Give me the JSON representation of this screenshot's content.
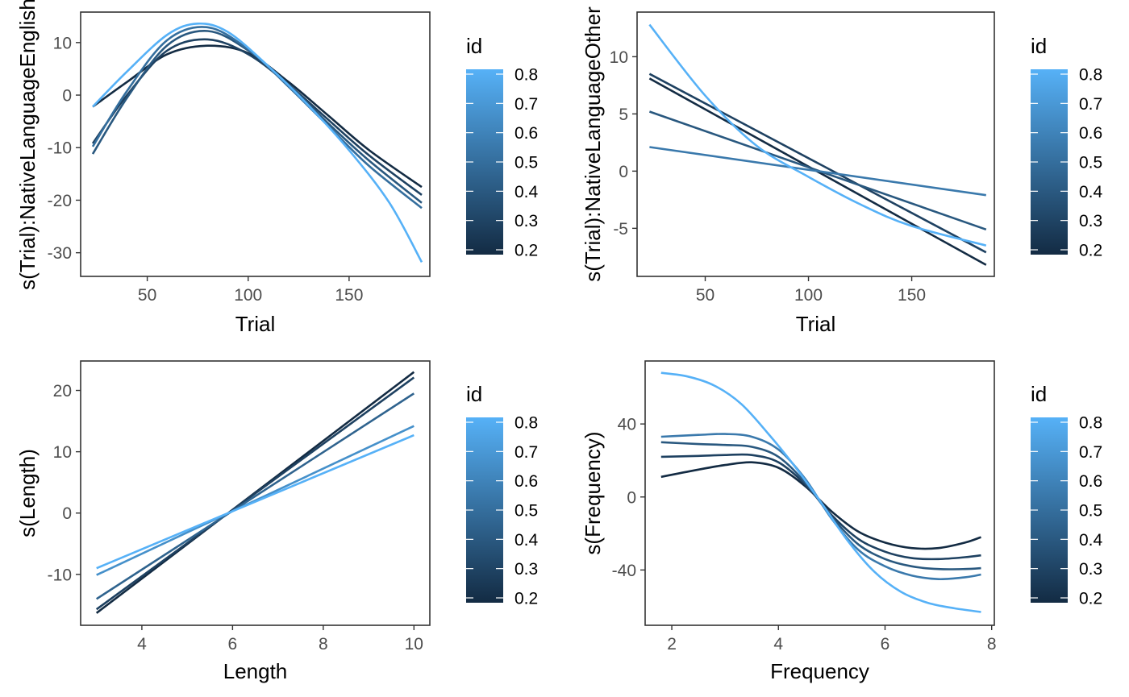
{
  "palette": {
    "low": "#132b43",
    "high": "#56b1f7",
    "frame": "#333333",
    "tick": "#4d4d4d"
  },
  "chart_data": [
    {
      "type": "line",
      "xlabel": "Trial",
      "ylabel": "s(Trial):NativeLanguageEnglish",
      "xlim": [
        17,
        190
      ],
      "ylim": [
        -34.5,
        15.8
      ],
      "xticks": [
        50,
        100,
        150
      ],
      "yticks": [
        10,
        0,
        -10,
        -20,
        -30
      ],
      "legend": {
        "title": "id",
        "position": "right",
        "ticks": [
          0.8,
          0.7,
          0.6,
          0.5,
          0.4,
          0.3,
          0.2
        ],
        "range": [
          0.2,
          0.8
        ]
      },
      "series": [
        {
          "id": 0.2,
          "x": [
            23,
            40,
            60,
            80,
            100,
            120,
            140,
            160,
            186
          ],
          "y": [
            -2.2,
            2.5,
            7.8,
            9.4,
            8.0,
            2.5,
            -4.0,
            -10.5,
            -17.5
          ]
        },
        {
          "id": 0.3,
          "x": [
            23,
            40,
            60,
            80,
            100,
            120,
            140,
            160,
            186
          ],
          "y": [
            -9.2,
            0.0,
            8.5,
            10.6,
            7.8,
            2.0,
            -4.8,
            -11.5,
            -19.0
          ]
        },
        {
          "id": 0.4,
          "x": [
            23,
            40,
            60,
            80,
            100,
            120,
            140,
            160,
            186
          ],
          "y": [
            -11.2,
            -0.5,
            9.5,
            12.2,
            8.5,
            2.0,
            -5.5,
            -12.5,
            -20.5
          ]
        },
        {
          "id": 0.5,
          "x": [
            23,
            40,
            60,
            80,
            100,
            120,
            140,
            160,
            186
          ],
          "y": [
            -9.8,
            0.8,
            10.5,
            12.9,
            8.7,
            1.6,
            -6.0,
            -13.5,
            -21.5
          ]
        },
        {
          "id": 0.8,
          "x": [
            23,
            40,
            60,
            75,
            90,
            110,
            130,
            150,
            170,
            186
          ],
          "y": [
            -2.2,
            4.5,
            11.5,
            13.6,
            12.0,
            5.5,
            -2.0,
            -10.5,
            -20.5,
            -31.8
          ]
        }
      ]
    },
    {
      "type": "line",
      "xlabel": "Trial",
      "ylabel": "s(Trial):NativeLanguageOther",
      "xlim": [
        17,
        190
      ],
      "ylim": [
        -9.2,
        13.9
      ],
      "xticks": [
        50,
        100,
        150
      ],
      "yticks": [
        10,
        5,
        0,
        -5
      ],
      "legend": {
        "title": "id",
        "position": "right",
        "ticks": [
          0.8,
          0.7,
          0.6,
          0.5,
          0.4,
          0.3,
          0.2
        ],
        "range": [
          0.2,
          0.8
        ]
      },
      "series": [
        {
          "id": 0.2,
          "x": [
            23,
            186
          ],
          "y": [
            8.1,
            -8.2
          ]
        },
        {
          "id": 0.3,
          "x": [
            23,
            186
          ],
          "y": [
            8.5,
            -7.1
          ]
        },
        {
          "id": 0.4,
          "x": [
            23,
            186
          ],
          "y": [
            5.2,
            -5.1
          ]
        },
        {
          "id": 0.55,
          "x": [
            23,
            186
          ],
          "y": [
            2.1,
            -2.1
          ]
        },
        {
          "id": 0.8,
          "x": [
            23,
            50,
            75,
            100,
            125,
            150,
            186
          ],
          "y": [
            12.8,
            6.6,
            2.2,
            -0.5,
            -2.9,
            -4.8,
            -6.5
          ]
        }
      ]
    },
    {
      "type": "line",
      "xlabel": "Length",
      "ylabel": "s(Length)",
      "xlim": [
        2.65,
        10.35
      ],
      "ylim": [
        -18.3,
        24.8
      ],
      "xticks": [
        4,
        6,
        8,
        10
      ],
      "yticks": [
        20,
        10,
        0,
        -10
      ],
      "legend": {
        "title": "id",
        "position": "right",
        "ticks": [
          0.8,
          0.7,
          0.6,
          0.5,
          0.4,
          0.3,
          0.2
        ],
        "range": [
          0.2,
          0.8
        ]
      },
      "series": [
        {
          "id": 0.2,
          "x": [
            3,
            10
          ],
          "y": [
            -16.3,
            23.0
          ]
        },
        {
          "id": 0.3,
          "x": [
            3,
            10
          ],
          "y": [
            -15.7,
            22.1
          ]
        },
        {
          "id": 0.45,
          "x": [
            3,
            10
          ],
          "y": [
            -14.0,
            19.5
          ]
        },
        {
          "id": 0.65,
          "x": [
            3,
            10
          ],
          "y": [
            -10.1,
            14.2
          ]
        },
        {
          "id": 0.8,
          "x": [
            3,
            10
          ],
          "y": [
            -9.0,
            12.7
          ]
        }
      ]
    },
    {
      "type": "line",
      "xlabel": "Frequency",
      "ylabel": "s(Frequency)",
      "xlim": [
        1.5,
        8.05
      ],
      "ylim": [
        -70.3,
        74.5
      ],
      "xticks": [
        2,
        4,
        6,
        8
      ],
      "yticks": [
        40,
        0,
        -40
      ],
      "legend": {
        "title": "id",
        "position": "right",
        "ticks": [
          0.8,
          0.7,
          0.6,
          0.5,
          0.4,
          0.3,
          0.2
        ],
        "range": [
          0.2,
          0.8
        ]
      },
      "series": [
        {
          "id": 0.2,
          "x": [
            1.8,
            2.5,
            3.0,
            3.5,
            4.0,
            4.5,
            5.0,
            5.5,
            6.0,
            6.5,
            7.0,
            7.5,
            7.8
          ],
          "y": [
            11,
            15,
            17.5,
            19,
            16,
            6,
            -8,
            -19,
            -25,
            -28,
            -28,
            -25,
            -22
          ]
        },
        {
          "id": 0.3,
          "x": [
            1.8,
            2.5,
            3.0,
            3.5,
            4.0,
            4.5,
            5.0,
            5.5,
            6.0,
            6.5,
            7.0,
            7.5,
            7.8
          ],
          "y": [
            22,
            22.5,
            23,
            23,
            19,
            7,
            -10,
            -23,
            -30,
            -33.5,
            -34,
            -33,
            -32
          ]
        },
        {
          "id": 0.4,
          "x": [
            1.8,
            2.5,
            3.0,
            3.5,
            4.0,
            4.5,
            5.0,
            5.5,
            6.0,
            6.5,
            7.0,
            7.5,
            7.8
          ],
          "y": [
            30,
            29,
            28.5,
            27.5,
            22,
            8,
            -11,
            -26,
            -34,
            -38,
            -39.5,
            -39.5,
            -39
          ]
        },
        {
          "id": 0.55,
          "x": [
            1.8,
            2.5,
            3.0,
            3.5,
            4.0,
            4.5,
            5.0,
            5.5,
            6.0,
            6.5,
            7.0,
            7.5,
            7.8
          ],
          "y": [
            33,
            34,
            34.5,
            33,
            26,
            10,
            -12,
            -29,
            -38,
            -43,
            -45,
            -44,
            -42.5
          ]
        },
        {
          "id": 0.8,
          "x": [
            1.8,
            2.3,
            2.8,
            3.3,
            3.8,
            4.3,
            4.8,
            5.3,
            5.8,
            6.3,
            6.8,
            7.3,
            7.8
          ],
          "y": [
            68,
            66,
            61,
            51,
            35,
            17,
            -3,
            -24,
            -41,
            -52,
            -58,
            -61,
            -63
          ]
        }
      ]
    }
  ]
}
